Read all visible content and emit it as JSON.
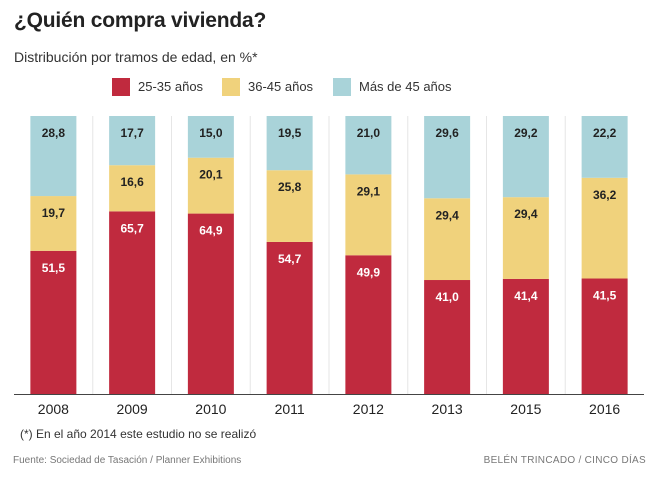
{
  "chart_data": {
    "type": "bar",
    "stacked": true,
    "title": "¿Quién compra vivienda?",
    "subtitle": "Distribución por tramos de edad, en %*",
    "categories": [
      "2008",
      "2009",
      "2010",
      "2011",
      "2012",
      "2013",
      "2015",
      "2016"
    ],
    "series": [
      {
        "name": "25-35 años",
        "color": "#c02a3e",
        "values": [
          51.5,
          65.7,
          64.9,
          54.7,
          49.9,
          41.0,
          41.4,
          41.5
        ],
        "labels": [
          "51,5",
          "65,7",
          "64,9",
          "54,7",
          "49,9",
          "41,0",
          "41,4",
          "41,5"
        ]
      },
      {
        "name": "36-45 años",
        "color": "#f0d27c",
        "values": [
          19.7,
          16.6,
          20.1,
          25.8,
          29.1,
          29.4,
          29.4,
          36.2
        ],
        "labels": [
          "19,7",
          "16,6",
          "20,1",
          "25,8",
          "29,1",
          "29,4",
          "29,4",
          "36,2"
        ]
      },
      {
        "name": "Más de 45 años",
        "color": "#a9d3d9",
        "values": [
          28.8,
          17.7,
          15.0,
          19.5,
          21.0,
          29.6,
          29.2,
          22.2
        ],
        "labels": [
          "28,8",
          "17,7",
          "15,0",
          "19,5",
          "21,0",
          "29,6",
          "29,2",
          "22,2"
        ]
      }
    ],
    "ylim": [
      0,
      100
    ],
    "grid": false,
    "legend": "top"
  },
  "footnote": "(*) En el año 2014 este estudio no se realizó",
  "source": "Fuente: Sociedad de Tasación / Planner Exhibitions",
  "credit": "BELÉN TRINCADO / CINCO DÍAS"
}
